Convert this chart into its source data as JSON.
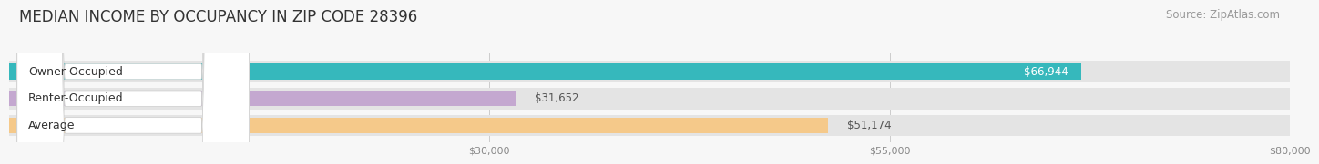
{
  "title": "MEDIAN INCOME BY OCCUPANCY IN ZIP CODE 28396",
  "source": "Source: ZipAtlas.com",
  "categories": [
    "Owner-Occupied",
    "Renter-Occupied",
    "Average"
  ],
  "values": [
    66944,
    31652,
    51174
  ],
  "labels": [
    "$66,944",
    "$31,652",
    "$51,174"
  ],
  "bar_colors": [
    "#36b8bc",
    "#c4a8d0",
    "#f5c98a"
  ],
  "bar_bg_color": "#e4e4e4",
  "bar_border_color": "#d0d0d0",
  "xlim_data": [
    0,
    80000
  ],
  "xticks": [
    30000,
    55000,
    80000
  ],
  "xticklabels": [
    "$30,000",
    "$55,000",
    "$80,000"
  ],
  "title_fontsize": 12,
  "source_fontsize": 8.5,
  "label_fontsize": 8.5,
  "cat_fontsize": 9,
  "tick_fontsize": 8,
  "bar_height": 0.58,
  "background_color": "#f7f7f7",
  "label_inside_color": [
    "#ffffff",
    "#555555",
    "#555555"
  ],
  "cat_text_color": "#333333",
  "value_label_inside": [
    true,
    false,
    false
  ]
}
